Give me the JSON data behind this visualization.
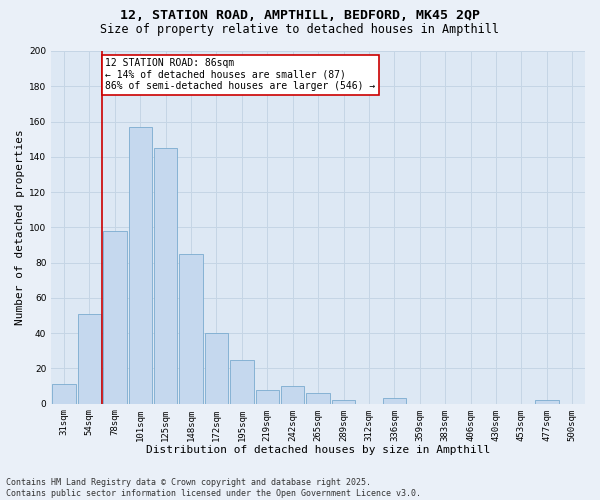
{
  "title_line1": "12, STATION ROAD, AMPTHILL, BEDFORD, MK45 2QP",
  "title_line2": "Size of property relative to detached houses in Ampthill",
  "xlabel": "Distribution of detached houses by size in Ampthill",
  "ylabel": "Number of detached properties",
  "categories": [
    "31sqm",
    "54sqm",
    "78sqm",
    "101sqm",
    "125sqm",
    "148sqm",
    "172sqm",
    "195sqm",
    "219sqm",
    "242sqm",
    "265sqm",
    "289sqm",
    "312sqm",
    "336sqm",
    "359sqm",
    "383sqm",
    "406sqm",
    "430sqm",
    "453sqm",
    "477sqm",
    "500sqm"
  ],
  "values": [
    11,
    51,
    98,
    157,
    145,
    85,
    40,
    25,
    8,
    10,
    6,
    2,
    0,
    3,
    0,
    0,
    0,
    0,
    0,
    2,
    0
  ],
  "bar_color": "#c5d8ee",
  "bar_edge_color": "#7aabcf",
  "bar_linewidth": 0.6,
  "vline_x_index": 2,
  "vline_color": "#cc0000",
  "vline_linewidth": 1.2,
  "annotation_text": "12 STATION ROAD: 86sqm\n← 14% of detached houses are smaller (87)\n86% of semi-detached houses are larger (546) →",
  "annotation_box_facecolor": "#ffffff",
  "annotation_box_edgecolor": "#cc0000",
  "ylim_max": 200,
  "yticks": [
    0,
    20,
    40,
    60,
    80,
    100,
    120,
    140,
    160,
    180,
    200
  ],
  "grid_color": "#c5d5e5",
  "bg_color": "#dde8f4",
  "fig_bg_color": "#eaf0f8",
  "footer_text": "Contains HM Land Registry data © Crown copyright and database right 2025.\nContains public sector information licensed under the Open Government Licence v3.0.",
  "title_fontsize": 9.5,
  "subtitle_fontsize": 8.5,
  "xlabel_fontsize": 8,
  "ylabel_fontsize": 8,
  "tick_fontsize": 6.5,
  "annotation_fontsize": 7,
  "footer_fontsize": 6
}
